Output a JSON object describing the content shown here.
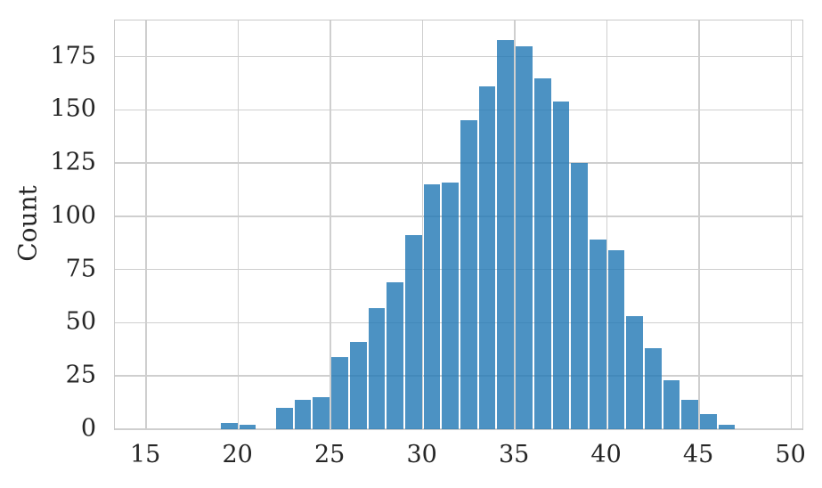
{
  "chart_data": {
    "type": "bar",
    "subtype": "histogram",
    "title": "",
    "xlabel": "",
    "ylabel": "Count",
    "bin_start": 19,
    "bin_width": 1,
    "bin_edges": [
      19,
      20,
      21,
      22,
      23,
      24,
      25,
      26,
      27,
      28,
      29,
      30,
      31,
      32,
      33,
      34,
      35,
      36,
      37,
      38,
      39,
      40,
      41,
      42,
      43,
      44,
      45,
      46,
      47
    ],
    "counts": [
      3,
      2,
      0,
      10,
      14,
      15,
      34,
      41,
      57,
      69,
      91,
      115,
      116,
      145,
      161,
      183,
      180,
      165,
      154,
      125,
      89,
      84,
      53,
      38,
      23,
      14,
      7,
      2
    ],
    "x_ticks": [
      15,
      20,
      25,
      30,
      35,
      40,
      45,
      50
    ],
    "y_ticks": [
      0,
      25,
      50,
      75,
      100,
      125,
      150,
      175
    ],
    "x_range": [
      13.3,
      50.6
    ],
    "y_range": [
      0,
      192
    ],
    "grid": true,
    "legend": null,
    "colors": {
      "bar_fill": "#1f77b4",
      "bar_alpha": 0.8,
      "bar_gap_color": "#ffffff",
      "grid_color": "#cfcfcf",
      "spine_color": "#c9c9c9",
      "text_color": "#262626",
      "background": "#ffffff"
    }
  }
}
